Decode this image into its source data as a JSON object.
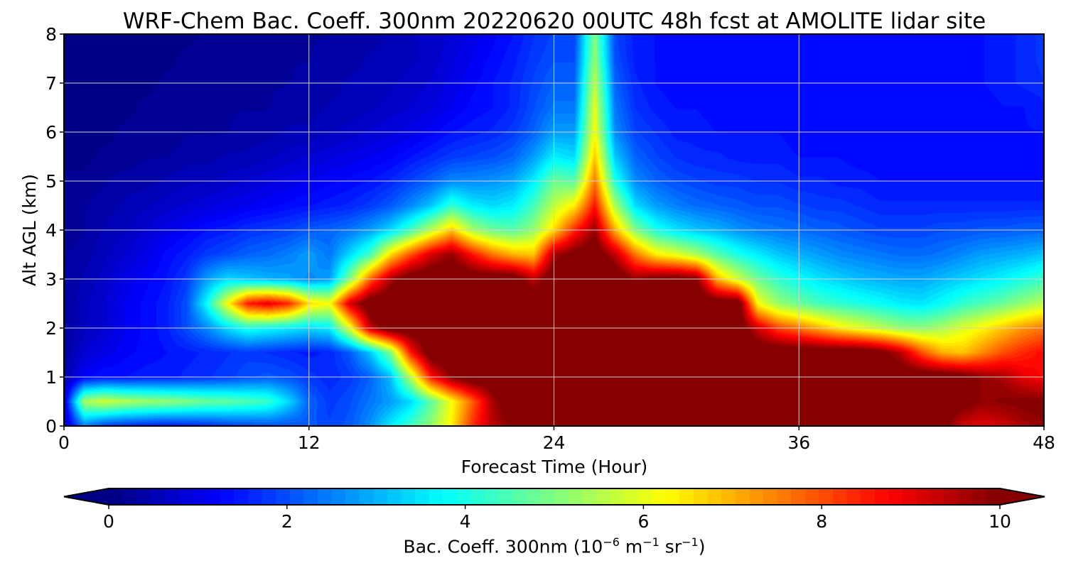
{
  "chart_data": {
    "type": "heatmap",
    "title": "WRF-Chem Bac. Coeff. 300nm  20220620 00UTC 48h fcst at AMOLITE lidar site",
    "xlabel": "Forecast Time (Hour)",
    "ylabel": "Alt AGL (km)",
    "xlim": [
      0,
      48
    ],
    "ylim": [
      0,
      8
    ],
    "x_ticks": [
      0,
      12,
      24,
      36,
      48
    ],
    "y_ticks": [
      0,
      1,
      2,
      3,
      4,
      5,
      6,
      7,
      8
    ],
    "grid": true,
    "colormap": "jet",
    "colorbar": {
      "label_prefix": "Bac. Coeff. 300nm  (10",
      "exp1": "−6",
      "mid": " m",
      "exp2": "−1",
      "mid2": " sr",
      "exp3": "−1",
      "suffix": ")",
      "range": [
        0,
        10
      ],
      "ticks": [
        0,
        2,
        4,
        6,
        8,
        10
      ],
      "extend": "both",
      "orientation": "horizontal"
    },
    "x": [
      0,
      1,
      2,
      3,
      4,
      5,
      6,
      7,
      8,
      9,
      10,
      11,
      12,
      13,
      14,
      15,
      16,
      17,
      18,
      19,
      20,
      21,
      22,
      23,
      24,
      25,
      26,
      27,
      28,
      29,
      30,
      31,
      32,
      33,
      34,
      35,
      36,
      37,
      38,
      39,
      40,
      41,
      42,
      43,
      44,
      45,
      46,
      47,
      48
    ],
    "y": [
      0,
      0.5,
      1,
      1.5,
      2,
      2.5,
      3,
      3.5,
      4,
      4.5,
      5,
      5.5,
      6,
      6.5,
      7,
      7.5,
      8
    ],
    "z_units": "10^-6 m^-1 sr^-1",
    "z": [
      [
        0.6,
        2.5,
        1.8,
        1.6,
        1.5,
        1.4,
        1.5,
        1.6,
        1.8,
        1.9,
        2.0,
        2.0,
        2.1,
        1.9,
        2.1,
        2.7,
        3.6,
        4.4,
        5.2,
        6.4,
        8.3,
        9.4,
        10.0,
        10.2,
        10.5,
        10.5,
        10.5,
        10.5,
        10.5,
        10.5,
        10.5,
        10.5,
        10.5,
        10.5,
        10.2,
        10.4,
        10.5,
        10.5,
        10.5,
        10.5,
        10.5,
        10.5,
        10.5,
        10.2,
        9.2,
        9.0,
        9.2,
        9.6,
        9.8
      ],
      [
        0.7,
        5.4,
        5.8,
        5.5,
        5.3,
        5.2,
        5.0,
        4.8,
        4.7,
        4.5,
        4.3,
        3.4,
        2.2,
        1.8,
        2.0,
        2.4,
        2.8,
        3.4,
        4.7,
        6.2,
        7.8,
        9.6,
        10.5,
        10.5,
        10.5,
        10.5,
        10.5,
        10.5,
        10.5,
        10.5,
        10.5,
        10.5,
        10.5,
        10.5,
        10.5,
        10.5,
        10.5,
        10.5,
        10.5,
        10.5,
        10.5,
        10.5,
        10.5,
        10.5,
        10.2,
        9.8,
        9.9,
        10.0,
        10.0
      ],
      [
        0.4,
        1.2,
        1.4,
        1.4,
        1.5,
        1.5,
        1.6,
        1.7,
        1.8,
        2.0,
        2.1,
        2.0,
        1.8,
        1.6,
        1.8,
        2.2,
        3.1,
        5.6,
        8.6,
        10.0,
        10.5,
        10.5,
        10.5,
        10.5,
        10.5,
        10.5,
        10.5,
        10.5,
        10.5,
        10.5,
        10.5,
        10.5,
        10.5,
        10.5,
        10.5,
        10.5,
        10.5,
        10.5,
        10.5,
        10.5,
        10.5,
        10.5,
        10.5,
        10.5,
        10.3,
        9.8,
        9.6,
        9.0,
        8.7
      ],
      [
        0.3,
        0.8,
        1.0,
        1.2,
        1.3,
        1.4,
        1.5,
        1.6,
        1.7,
        1.8,
        1.7,
        1.6,
        1.5,
        1.6,
        2.1,
        3.2,
        5.0,
        8.6,
        10.5,
        10.5,
        10.5,
        10.5,
        10.5,
        10.5,
        10.5,
        10.5,
        10.5,
        10.5,
        10.5,
        10.5,
        10.5,
        10.5,
        10.5,
        10.5,
        10.5,
        10.5,
        10.5,
        10.5,
        10.5,
        10.5,
        10.2,
        9.4,
        8.0,
        7.0,
        6.8,
        7.4,
        8.0,
        8.4,
        8.7
      ],
      [
        0.3,
        0.6,
        0.8,
        1.1,
        1.3,
        1.5,
        2.0,
        2.6,
        3.4,
        4.0,
        3.8,
        3.6,
        3.4,
        3.6,
        6.0,
        9.3,
        10.5,
        10.5,
        10.5,
        10.5,
        10.5,
        10.5,
        10.5,
        10.5,
        10.5,
        10.5,
        10.5,
        10.5,
        10.5,
        10.5,
        10.5,
        10.5,
        10.5,
        10.5,
        9.2,
        8.1,
        7.6,
        7.0,
        6.4,
        6.0,
        5.6,
        5.2,
        5.1,
        5.4,
        5.9,
        6.3,
        6.8,
        7.3,
        7.6
      ],
      [
        0.3,
        0.6,
        0.8,
        1.1,
        1.3,
        1.5,
        2.0,
        3.8,
        6.2,
        8.5,
        9.0,
        8.4,
        6.6,
        6.2,
        9.2,
        10.5,
        10.5,
        10.5,
        10.5,
        10.5,
        10.5,
        10.5,
        10.5,
        10.5,
        10.5,
        10.5,
        10.5,
        10.5,
        10.5,
        10.5,
        10.5,
        10.5,
        10.5,
        10.5,
        6.2,
        5.2,
        4.8,
        4.4,
        4.2,
        4.0,
        3.8,
        3.6,
        3.5,
        3.8,
        4.2,
        4.5,
        4.8,
        5.2,
        5.6
      ],
      [
        0.3,
        0.5,
        0.7,
        1.0,
        1.2,
        1.4,
        1.8,
        2.8,
        3.4,
        3.2,
        3.0,
        2.9,
        2.6,
        2.8,
        5.0,
        7.8,
        9.6,
        10.5,
        10.5,
        10.5,
        10.5,
        10.5,
        10.5,
        9.4,
        10.5,
        10.5,
        10.5,
        10.5,
        9.8,
        10.2,
        10.3,
        10.0,
        7.0,
        5.8,
        4.8,
        4.2,
        3.8,
        3.5,
        3.3,
        3.1,
        3.0,
        2.9,
        2.9,
        3.1,
        3.3,
        3.5,
        3.7,
        4.0,
        4.3
      ],
      [
        0.3,
        0.4,
        0.6,
        0.8,
        1.0,
        1.3,
        1.5,
        1.8,
        2.0,
        2.2,
        2.3,
        2.5,
        2.8,
        2.4,
        3.4,
        4.4,
        6.6,
        8.0,
        9.2,
        9.8,
        8.6,
        7.6,
        7.0,
        6.8,
        9.6,
        10.2,
        10.4,
        9.4,
        7.6,
        6.4,
        6.0,
        5.4,
        4.6,
        4.0,
        3.6,
        3.2,
        3.0,
        2.8,
        2.6,
        2.5,
        2.4,
        2.3,
        2.3,
        2.4,
        2.6,
        2.8,
        2.9,
        3.0,
        3.2
      ],
      [
        0.2,
        0.3,
        0.5,
        0.6,
        0.8,
        1.0,
        1.2,
        1.4,
        1.5,
        1.7,
        1.8,
        1.9,
        2.1,
        2.2,
        2.4,
        2.8,
        3.4,
        4.4,
        5.6,
        6.8,
        5.4,
        4.8,
        4.6,
        5.2,
        6.6,
        8.4,
        9.8,
        7.0,
        5.0,
        4.0,
        3.5,
        3.2,
        3.0,
        2.7,
        2.5,
        2.4,
        2.3,
        2.2,
        2.1,
        2.0,
        1.9,
        1.9,
        1.9,
        2.0,
        2.0,
        2.1,
        2.1,
        2.2,
        2.2
      ],
      [
        0.2,
        0.3,
        0.4,
        0.5,
        0.6,
        0.7,
        0.8,
        0.9,
        1.0,
        1.1,
        1.2,
        1.3,
        1.4,
        1.5,
        1.6,
        1.8,
        2.1,
        2.6,
        3.2,
        4.2,
        3.6,
        3.4,
        3.6,
        4.4,
        5.6,
        6.4,
        8.6,
        5.4,
        3.4,
        2.8,
        2.5,
        2.3,
        2.2,
        2.1,
        2.0,
        2.0,
        1.9,
        1.8,
        1.8,
        1.7,
        1.6,
        1.6,
        1.6,
        1.6,
        1.6,
        1.6,
        1.6,
        1.6,
        1.6
      ],
      [
        0.2,
        0.2,
        0.3,
        0.4,
        0.4,
        0.5,
        0.6,
        0.6,
        0.7,
        0.8,
        0.9,
        1.0,
        1.1,
        1.2,
        1.3,
        1.4,
        1.6,
        1.9,
        2.2,
        2.6,
        2.6,
        2.7,
        2.9,
        3.6,
        4.8,
        4.6,
        7.6,
        4.0,
        2.6,
        2.2,
        2.0,
        1.9,
        1.8,
        1.8,
        1.7,
        1.7,
        1.6,
        1.6,
        1.5,
        1.5,
        1.4,
        1.4,
        1.4,
        1.4,
        1.4,
        1.4,
        1.4,
        1.4,
        1.4
      ],
      [
        0.1,
        0.1,
        0.2,
        0.2,
        0.3,
        0.3,
        0.4,
        0.4,
        0.5,
        0.5,
        0.6,
        0.7,
        0.8,
        0.9,
        1.0,
        1.1,
        1.2,
        1.4,
        1.6,
        1.8,
        1.9,
        2.0,
        2.2,
        2.8,
        3.6,
        3.4,
        6.8,
        3.2,
        2.2,
        1.9,
        1.7,
        1.6,
        1.6,
        1.5,
        1.5,
        1.5,
        1.4,
        1.4,
        1.4,
        1.3,
        1.3,
        1.3,
        1.3,
        1.3,
        1.3,
        1.3,
        1.3,
        1.3,
        1.3
      ],
      [
        0.1,
        0.1,
        0.1,
        0.2,
        0.2,
        0.2,
        0.3,
        0.3,
        0.3,
        0.4,
        0.4,
        0.5,
        0.5,
        0.6,
        0.7,
        0.8,
        0.9,
        1.0,
        1.2,
        1.4,
        1.5,
        1.6,
        1.8,
        2.2,
        2.8,
        2.8,
        6.2,
        2.6,
        1.9,
        1.7,
        1.5,
        1.5,
        1.4,
        1.4,
        1.4,
        1.4,
        1.3,
        1.3,
        1.3,
        1.3,
        1.3,
        1.3,
        1.3,
        1.3,
        1.3,
        1.3,
        1.3,
        1.4,
        1.4
      ],
      [
        0.1,
        0.1,
        0.1,
        0.1,
        0.2,
        0.2,
        0.2,
        0.2,
        0.3,
        0.3,
        0.3,
        0.4,
        0.4,
        0.5,
        0.5,
        0.6,
        0.7,
        0.8,
        0.9,
        1.1,
        1.3,
        1.4,
        1.6,
        2.0,
        2.4,
        2.4,
        6.0,
        2.4,
        1.7,
        1.5,
        1.4,
        1.4,
        1.3,
        1.3,
        1.3,
        1.3,
        1.3,
        1.3,
        1.3,
        1.3,
        1.3,
        1.3,
        1.3,
        1.3,
        1.3,
        1.3,
        1.4,
        1.4,
        1.5
      ],
      [
        0.1,
        0.1,
        0.1,
        0.1,
        0.1,
        0.2,
        0.2,
        0.2,
        0.2,
        0.3,
        0.3,
        0.3,
        0.4,
        0.4,
        0.5,
        0.5,
        0.6,
        0.7,
        0.8,
        1.0,
        1.2,
        1.4,
        1.6,
        1.9,
        2.2,
        2.2,
        5.6,
        2.2,
        1.6,
        1.4,
        1.3,
        1.3,
        1.3,
        1.3,
        1.3,
        1.3,
        1.3,
        1.3,
        1.3,
        1.3,
        1.3,
        1.3,
        1.3,
        1.3,
        1.3,
        1.4,
        1.5,
        1.6,
        1.7
      ],
      [
        0.1,
        0.1,
        0.1,
        0.1,
        0.1,
        0.1,
        0.2,
        0.2,
        0.2,
        0.2,
        0.3,
        0.3,
        0.3,
        0.4,
        0.4,
        0.5,
        0.5,
        0.6,
        0.7,
        0.9,
        1.1,
        1.3,
        1.5,
        1.8,
        2.0,
        2.0,
        5.2,
        2.0,
        1.5,
        1.4,
        1.3,
        1.3,
        1.3,
        1.3,
        1.3,
        1.3,
        1.3,
        1.3,
        1.3,
        1.3,
        1.3,
        1.3,
        1.3,
        1.3,
        1.3,
        1.4,
        1.5,
        1.6,
        1.8
      ],
      [
        0.1,
        0.1,
        0.1,
        0.1,
        0.1,
        0.1,
        0.1,
        0.2,
        0.2,
        0.2,
        0.2,
        0.3,
        0.3,
        0.3,
        0.4,
        0.4,
        0.5,
        0.6,
        0.7,
        0.8,
        1.0,
        1.2,
        1.4,
        1.7,
        1.9,
        1.9,
        5.0,
        1.9,
        1.5,
        1.4,
        1.3,
        1.3,
        1.3,
        1.3,
        1.3,
        1.3,
        1.3,
        1.3,
        1.3,
        1.3,
        1.3,
        1.3,
        1.3,
        1.3,
        1.3,
        1.4,
        1.5,
        1.6,
        1.8
      ]
    ]
  }
}
